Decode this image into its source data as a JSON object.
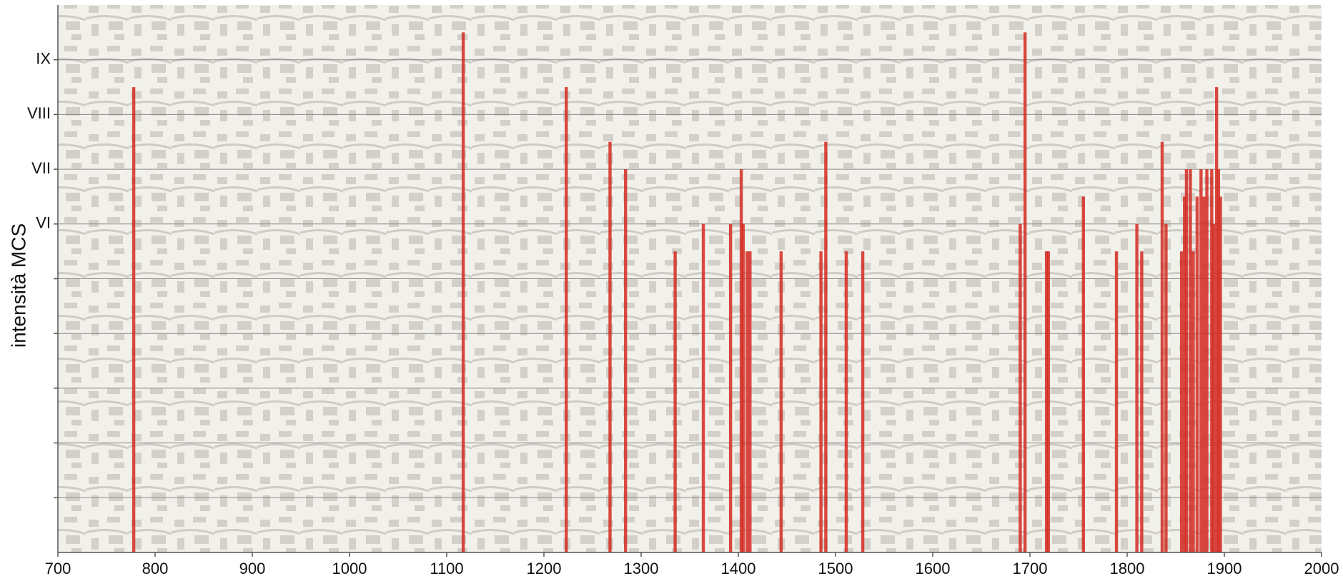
{
  "chart_data": {
    "type": "bar",
    "y_label": "intensità MCS",
    "x": [
      778,
      1117,
      1223,
      1268,
      1284,
      1335,
      1364,
      1392,
      1403,
      1405,
      1409,
      1412,
      1444,
      1485,
      1490,
      1511,
      1528,
      1690,
      1695,
      1717,
      1719,
      1755,
      1789,
      1810,
      1815,
      1836,
      1840,
      1856,
      1859,
      1861,
      1865,
      1868,
      1872,
      1876,
      1879,
      1882,
      1887,
      1889,
      1892,
      1894,
      1896
    ],
    "values": [
      8.5,
      9.5,
      8.5,
      7.5,
      7,
      5.5,
      6,
      6,
      7,
      6,
      5.5,
      5.5,
      5.5,
      5.5,
      7.5,
      5.5,
      5.5,
      6,
      9.5,
      5.5,
      5.5,
      6.5,
      5.5,
      6,
      5.5,
      7.5,
      6,
      5.5,
      6.5,
      7,
      7,
      5.5,
      6.5,
      7,
      6.5,
      7,
      7,
      6,
      8.5,
      7,
      6.5
    ],
    "color": "#d42a22",
    "xlim": [
      700,
      2000
    ],
    "xticks": [
      700,
      800,
      900,
      1000,
      1100,
      1200,
      1300,
      1400,
      1500,
      1600,
      1700,
      1800,
      1900,
      2000
    ],
    "ylim": [
      0,
      10
    ],
    "yticks": [
      {
        "value": 1,
        "label": null
      },
      {
        "value": 2,
        "label": null
      },
      {
        "value": 3,
        "label": null
      },
      {
        "value": 4,
        "label": null
      },
      {
        "value": 5,
        "label": null
      },
      {
        "value": 6,
        "label": "VI"
      },
      {
        "value": 7,
        "label": "VII"
      },
      {
        "value": 8,
        "label": "VIII"
      },
      {
        "value": 9,
        "label": "IX"
      }
    ],
    "grid": true
  }
}
